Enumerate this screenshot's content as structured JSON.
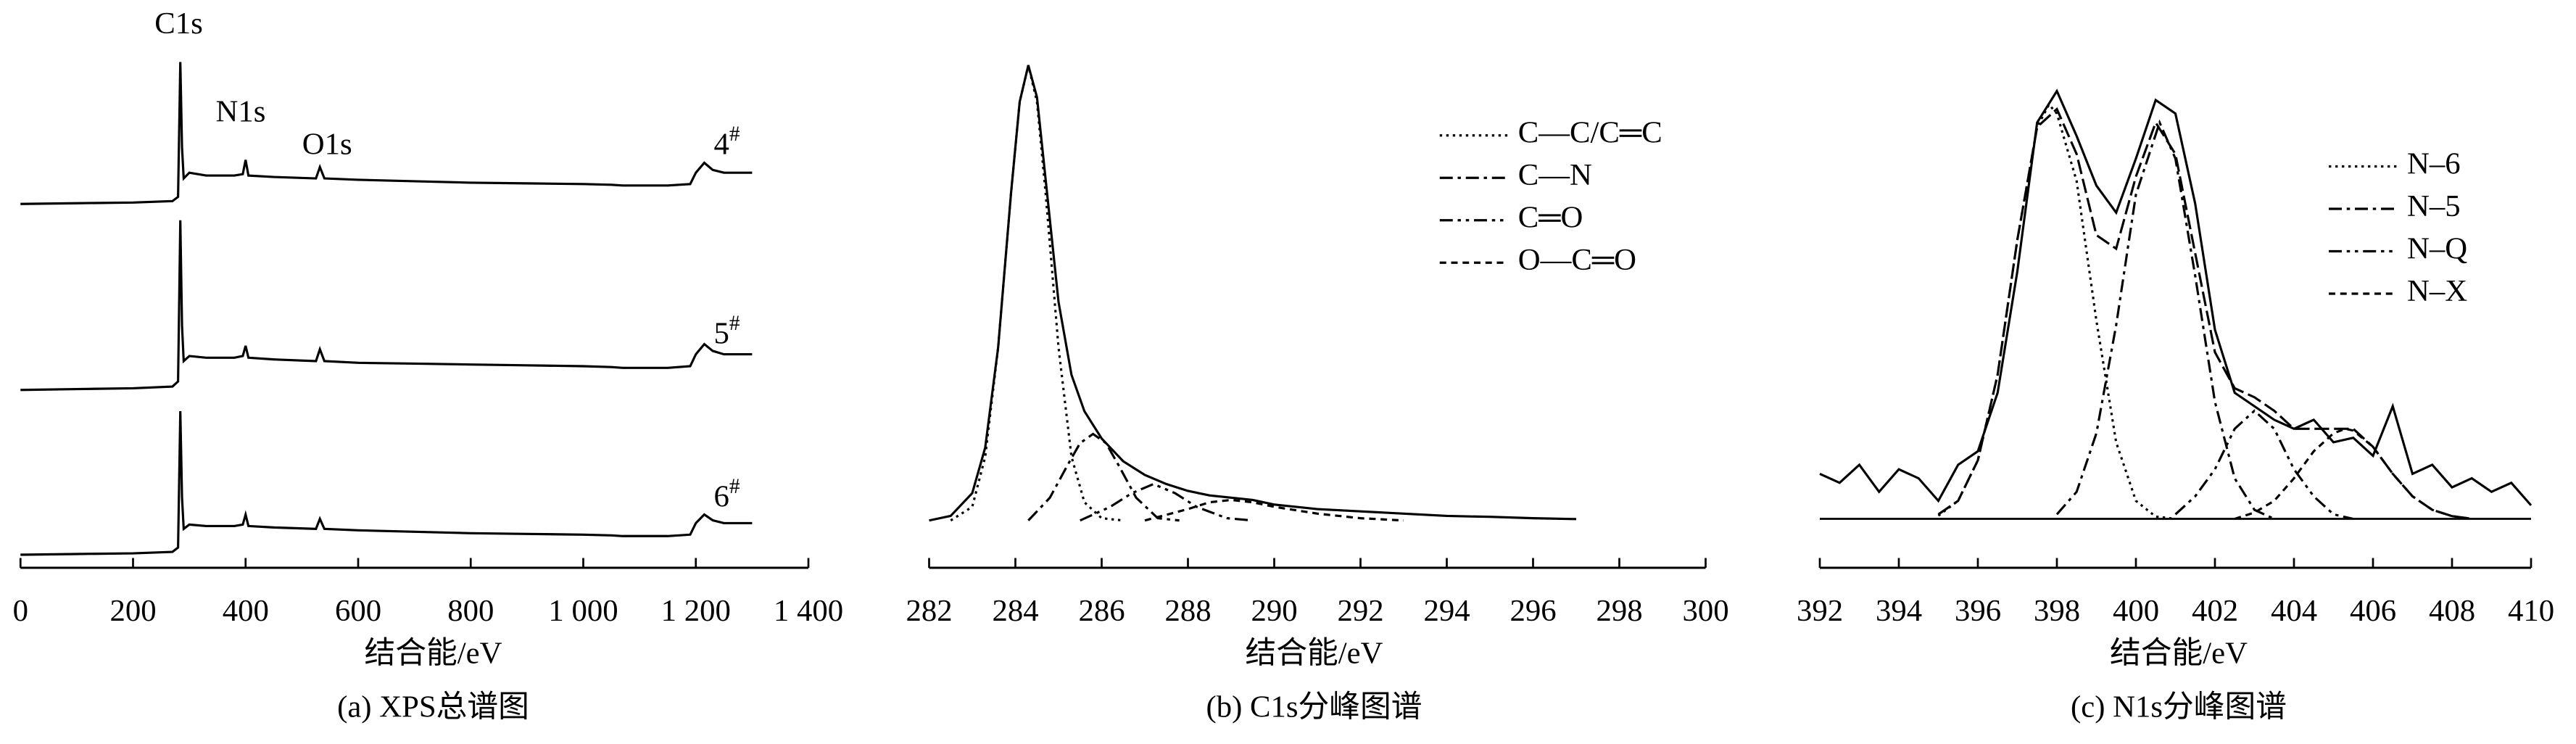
{
  "chart_data": [
    {
      "type": "line",
      "caption": "(a) XPS总谱图",
      "xlabel": "结合能/eV",
      "xlim": [
        0,
        1400
      ],
      "xticks": [
        0,
        200,
        400,
        600,
        800,
        {
          "value": 1000,
          "label": "1 000"
        },
        {
          "value": 1200,
          "label": "1 200"
        },
        {
          "value": 1400,
          "label": "1 400"
        }
      ],
      "ylim": [
        0,
        100
      ],
      "annotations": [
        "C1s",
        "N1s",
        "O1s"
      ],
      "x": [
        0,
        100,
        200,
        270,
        280,
        284,
        287,
        290,
        300,
        330,
        380,
        395,
        400,
        405,
        450,
        525,
        532,
        540,
        600,
        700,
        800,
        900,
        1000,
        1050,
        1070,
        1100,
        1150,
        1190,
        1200,
        1215,
        1230,
        1250,
        1300
      ],
      "series": [
        {
          "name": "4#",
          "color": "#000000",
          "dash": "solid",
          "values": [
            0,
            0.5,
            1,
            2,
            5,
            100,
            40,
            18,
            22,
            20,
            20,
            21,
            31,
            20,
            19,
            18,
            26,
            18,
            17,
            16,
            15,
            14.5,
            14,
            13.5,
            13,
            13,
            13,
            14,
            22,
            29,
            24,
            22,
            22
          ]
        },
        {
          "name": "5#",
          "color": "#000000",
          "dash": "solid",
          "values": [
            0,
            0.5,
            1,
            2,
            5,
            100,
            38,
            17,
            20,
            19,
            19,
            20,
            26,
            19,
            18,
            17,
            24,
            17,
            16,
            15.5,
            15,
            14.5,
            14,
            13.5,
            13,
            13,
            13,
            14,
            21,
            27,
            23,
            21,
            21
          ]
        },
        {
          "name": "6#",
          "color": "#000000",
          "dash": "solid",
          "values": [
            0,
            0.5,
            1,
            2,
            5,
            100,
            40,
            18,
            21,
            20,
            20,
            21,
            28,
            20,
            19,
            18,
            25,
            18,
            17,
            16,
            15,
            14.5,
            14,
            13.5,
            13,
            13,
            13,
            14,
            22,
            28,
            24,
            22,
            22
          ]
        }
      ]
    },
    {
      "type": "line",
      "caption": "(b) C1s分峰图谱",
      "xlabel": "结合能/eV",
      "xlim": [
        282,
        300
      ],
      "xticks": [
        282,
        284,
        286,
        288,
        290,
        292,
        294,
        296,
        298,
        300
      ],
      "ylim": [
        0,
        100
      ],
      "legend": "upper right",
      "series": [
        {
          "color": "#000000",
          "dash": "solid",
          "x": [
            282,
            282.5,
            283,
            283.3,
            283.6,
            283.9,
            284.1,
            284.3,
            284.5,
            284.7,
            285,
            285.3,
            285.6,
            286,
            286.5,
            287,
            287.5,
            288,
            288.5,
            289,
            289.5,
            290,
            291,
            292,
            293,
            294,
            295,
            296,
            297
          ],
          "values": [
            0,
            1,
            6,
            16,
            38,
            72,
            92,
            100,
            93,
            75,
            48,
            32,
            24,
            18,
            13,
            10,
            8,
            6.5,
            5.5,
            5,
            4.5,
            3.5,
            2.5,
            2,
            1.5,
            1,
            0.8,
            0.5,
            0.3
          ]
        },
        {
          "name": "C—C/C═C",
          "color": "#000000",
          "dash": "dotted",
          "x": [
            282.5,
            283,
            283.3,
            283.6,
            283.9,
            284.1,
            284.3,
            284.5,
            284.7,
            285,
            285.3,
            285.6,
            286,
            286.5
          ],
          "values": [
            0,
            3,
            14,
            38,
            72,
            92,
            100,
            92,
            72,
            38,
            14,
            4,
            0.5,
            0
          ]
        },
        {
          "name": "C—N",
          "color": "#000000",
          "dash": "dashdot",
          "x": [
            284.3,
            284.8,
            285.2,
            285.5,
            285.8,
            286.1,
            286.4,
            286.8,
            287.3,
            287.8
          ],
          "values": [
            0,
            5,
            12,
            17,
            19,
            17,
            12,
            5,
            0.5,
            0
          ]
        },
        {
          "name": "C═O",
          "color": "#000000",
          "dash": "dashdotdot",
          "x": [
            285.5,
            286.2,
            286.7,
            287.2,
            287.7,
            288.2,
            288.9,
            289.5
          ],
          "values": [
            0,
            3,
            6,
            8,
            6,
            3,
            0.5,
            0
          ]
        },
        {
          "name": "O—C═O",
          "color": "#000000",
          "dash": "dashed",
          "x": [
            287,
            288,
            288.5,
            289,
            289.5,
            290,
            291,
            292,
            293
          ],
          "values": [
            0,
            2.5,
            4,
            4.5,
            4,
            3,
            1.5,
            0.5,
            0
          ]
        }
      ]
    },
    {
      "type": "line",
      "caption": "(c) N1s分峰图谱",
      "xlabel": "结合能/eV",
      "xlim": [
        392,
        410
      ],
      "xticks": [
        392,
        394,
        396,
        398,
        400,
        402,
        404,
        406,
        408,
        410
      ],
      "ylim": [
        0,
        100
      ],
      "legend": "upper right",
      "series": [
        {
          "color": "#000000",
          "dash": "solid",
          "x": [
            392,
            392.5,
            393,
            393.5,
            394,
            394.5,
            395,
            395.5,
            396,
            396.5,
            397,
            397.5,
            398,
            398.5,
            399,
            399.5,
            400,
            400.5,
            401,
            401.5,
            402,
            402.5,
            403,
            403.5,
            404,
            404.5,
            405,
            405.5,
            406,
            406.5,
            407,
            407.5,
            408,
            408.5,
            409,
            409.5,
            410
          ],
          "values": [
            10,
            8,
            12,
            6,
            11,
            9,
            4,
            12,
            15,
            28,
            55,
            88,
            95,
            85,
            74,
            68,
            80,
            93,
            90,
            70,
            42,
            28,
            25,
            22,
            20,
            22,
            17,
            18,
            14,
            25,
            10,
            12,
            7,
            9,
            6,
            8,
            3
          ]
        },
        {
          "color": "#000000",
          "dash": "longdash",
          "x": [
            395,
            395.5,
            396,
            396.5,
            397,
            397.5,
            398,
            398.5,
            399,
            399.5,
            400,
            400.5,
            401,
            401.5,
            402,
            402.5,
            403,
            403.5,
            404,
            404.5,
            405,
            405.5,
            406,
            406.5,
            407,
            407.5,
            408,
            408.5
          ],
          "values": [
            1,
            4,
            13,
            32,
            62,
            87,
            91,
            81,
            63,
            60,
            76,
            88,
            81,
            59,
            37,
            29,
            27,
            24,
            20,
            20,
            20,
            20,
            16,
            10,
            5,
            2,
            0.6,
            0
          ]
        },
        {
          "name": "N–6",
          "color": "#000000",
          "dash": "dotted",
          "x": [
            395,
            395.5,
            396,
            396.5,
            397,
            397.5,
            397.8,
            398,
            398.5,
            399,
            399.5,
            400,
            400.5,
            401
          ],
          "values": [
            0.7,
            4,
            13,
            32,
            62,
            87,
            92,
            90,
            75,
            44,
            17,
            4,
            0.5,
            0
          ]
        },
        {
          "name": "N–5",
          "color": "#000000",
          "dash": "dashdot",
          "x": [
            398,
            398.5,
            399,
            399.5,
            400,
            400.6,
            401,
            401.5,
            402,
            402.5,
            403,
            403.5
          ],
          "values": [
            1,
            6,
            19,
            43,
            72,
            88,
            80,
            54,
            26,
            9,
            2,
            0
          ]
        },
        {
          "name": "N–Q",
          "color": "#000000",
          "dash": "dashdotdot",
          "x": [
            401,
            401.5,
            402,
            402.5,
            403,
            403.5,
            404,
            404.5,
            405,
            405.5
          ],
          "values": [
            1,
            5,
            11,
            20,
            24,
            20,
            11,
            5,
            1,
            0
          ]
        },
        {
          "name": "N–X",
          "color": "#000000",
          "dash": "dashed",
          "x": [
            402.5,
            403,
            403.5,
            404,
            404.5,
            405,
            405.3,
            405.5,
            406,
            406.5,
            407,
            407.5,
            408,
            408.5
          ],
          "values": [
            0,
            1.4,
            4,
            9,
            15,
            19,
            20,
            19.6,
            16,
            10,
            5,
            2,
            0.6,
            0
          ]
        }
      ]
    }
  ]
}
